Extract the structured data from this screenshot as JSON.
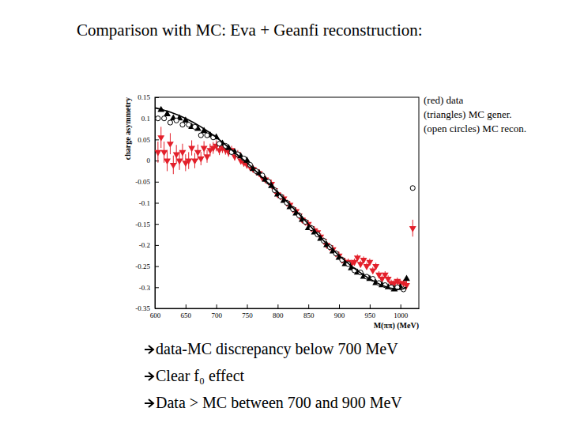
{
  "chart_data": {
    "type": "scatter",
    "title": "Comparison with MC: Eva + Geanfi reconstruction:",
    "x_label": "M(ππ) (MeV)",
    "y_label": "charge asymmetry",
    "xlim": [
      600,
      1030
    ],
    "ylim": [
      -0.35,
      0.15
    ],
    "xticks": [
      600,
      650,
      700,
      750,
      800,
      850,
      900,
      950,
      1000
    ],
    "yticks": [
      0.15,
      0.1,
      0.05,
      0,
      -0.05,
      -0.1,
      -0.15,
      -0.2,
      -0.25,
      -0.3,
      -0.35
    ],
    "notes": [
      "data-MC discrepancy below 700 MeV",
      "Clear f₀ effect",
      "Data > MC between 700 and 900 MeV"
    ],
    "series": [
      {
        "name": "(red) data",
        "color": "#e3202b",
        "marker": "triangle-down",
        "x": [
          605,
          610,
          615,
          620,
          625,
          630,
          635,
          640,
          645,
          650,
          655,
          660,
          665,
          670,
          675,
          680,
          685,
          690,
          695,
          700,
          705,
          710,
          715,
          720,
          725,
          730,
          735,
          740,
          745,
          750,
          755,
          760,
          765,
          770,
          775,
          780,
          785,
          790,
          795,
          800,
          805,
          810,
          815,
          820,
          825,
          830,
          835,
          840,
          845,
          850,
          855,
          860,
          865,
          870,
          875,
          880,
          885,
          890,
          895,
          900,
          905,
          910,
          915,
          920,
          925,
          930,
          935,
          940,
          945,
          950,
          955,
          960,
          965,
          970,
          975,
          980,
          985,
          990,
          995,
          1000,
          1005,
          1010,
          1020
        ],
        "values": [
          0.02,
          0.055,
          0.02,
          0.0,
          0.04,
          -0.01,
          0.015,
          0.0,
          0.02,
          -0.005,
          0.0,
          0.03,
          0.0,
          0.02,
          0.005,
          0.03,
          0.01,
          0.025,
          0.03,
          0.035,
          0.025,
          0.03,
          0.025,
          0.02,
          0.025,
          0.01,
          0.015,
          0.0,
          -0.005,
          -0.01,
          -0.015,
          -0.02,
          -0.025,
          -0.03,
          -0.04,
          -0.045,
          -0.05,
          -0.055,
          -0.07,
          -0.08,
          -0.085,
          -0.09,
          -0.1,
          -0.105,
          -0.115,
          -0.12,
          -0.13,
          -0.14,
          -0.145,
          -0.15,
          -0.16,
          -0.165,
          -0.17,
          -0.18,
          -0.19,
          -0.2,
          -0.205,
          -0.21,
          -0.22,
          -0.225,
          -0.235,
          -0.24,
          -0.24,
          -0.245,
          -0.24,
          -0.23,
          -0.245,
          -0.235,
          -0.25,
          -0.24,
          -0.26,
          -0.25,
          -0.27,
          -0.28,
          -0.27,
          -0.28,
          -0.29,
          -0.29,
          -0.285,
          -0.29,
          -0.29,
          -0.295,
          -0.16
        ],
        "errors": [
          0.025,
          0.025,
          0.025,
          0.025,
          0.025,
          0.022,
          0.022,
          0.022,
          0.02,
          0.02,
          0.02,
          0.018,
          0.018,
          0.018,
          0.016,
          0.016,
          0.015,
          0.015,
          0.014,
          0.013,
          0.012,
          0.012,
          0.011,
          0.011,
          0.01,
          0.01,
          0.01,
          0.009,
          0.009,
          0.009,
          0.008,
          0.008,
          0.008,
          0.008,
          0.008,
          0.008,
          0.008,
          0.008,
          0.008,
          0.008,
          0.008,
          0.008,
          0.008,
          0.008,
          0.008,
          0.008,
          0.008,
          0.008,
          0.008,
          0.008,
          0.008,
          0.008,
          0.008,
          0.008,
          0.008,
          0.008,
          0.008,
          0.008,
          0.008,
          0.008,
          0.008,
          0.008,
          0.008,
          0.008,
          0.008,
          0.008,
          0.008,
          0.008,
          0.008,
          0.008,
          0.008,
          0.008,
          0.008,
          0.008,
          0.008,
          0.008,
          0.008,
          0.008,
          0.008,
          0.008,
          0.008,
          0.01,
          0.02
        ]
      },
      {
        "name": "(triangles) MC gener.",
        "color": "#000000",
        "marker": "triangle-up",
        "x": [
          610,
          620,
          630,
          640,
          650,
          660,
          670,
          680,
          690,
          700,
          710,
          720,
          730,
          740,
          750,
          760,
          770,
          780,
          790,
          800,
          810,
          820,
          830,
          840,
          850,
          860,
          870,
          880,
          890,
          900,
          910,
          920,
          930,
          940,
          950,
          960,
          970,
          980,
          990,
          1000,
          1010
        ],
        "values": [
          0.12,
          0.11,
          0.1,
          0.1,
          0.095,
          0.08,
          0.075,
          0.07,
          0.06,
          0.055,
          0.04,
          0.03,
          0.02,
          0.01,
          0.0,
          -0.02,
          -0.03,
          -0.045,
          -0.06,
          -0.08,
          -0.095,
          -0.11,
          -0.125,
          -0.14,
          -0.16,
          -0.17,
          -0.185,
          -0.2,
          -0.215,
          -0.23,
          -0.245,
          -0.255,
          -0.265,
          -0.275,
          -0.28,
          -0.29,
          -0.295,
          -0.3,
          -0.305,
          -0.3,
          -0.28
        ]
      },
      {
        "name": "(open circles) MC recon.",
        "color": "#000000",
        "marker": "circle-open",
        "x": [
          605,
          615,
          625,
          635,
          645,
          655,
          665,
          675,
          685,
          695,
          705,
          715,
          725,
          735,
          745,
          755,
          765,
          775,
          785,
          795,
          805,
          815,
          825,
          835,
          845,
          855,
          865,
          875,
          885,
          895,
          905,
          915,
          925,
          935,
          945,
          955,
          965,
          975,
          985,
          995,
          1005,
          1020
        ],
        "values": [
          0.1,
          0.1,
          0.09,
          0.095,
          0.085,
          0.085,
          0.08,
          0.06,
          0.06,
          0.055,
          0.04,
          0.035,
          0.02,
          0.015,
          0.005,
          -0.01,
          -0.025,
          -0.035,
          -0.05,
          -0.07,
          -0.085,
          -0.1,
          -0.115,
          -0.13,
          -0.145,
          -0.16,
          -0.175,
          -0.19,
          -0.205,
          -0.22,
          -0.235,
          -0.245,
          -0.26,
          -0.265,
          -0.275,
          -0.28,
          -0.29,
          -0.295,
          -0.3,
          -0.3,
          -0.305,
          -0.065
        ]
      },
      {
        "type": "line",
        "color": "#000000",
        "line_style": "solid",
        "x": [
          600,
          625,
          650,
          675,
          700,
          725,
          750,
          775,
          800,
          825,
          850,
          875,
          900,
          925,
          950,
          975,
          1000,
          1010
        ],
        "values": [
          0.125,
          0.115,
          0.1,
          0.08,
          0.055,
          0.025,
          -0.005,
          -0.04,
          -0.075,
          -0.112,
          -0.15,
          -0.19,
          -0.225,
          -0.255,
          -0.28,
          -0.298,
          -0.305,
          -0.3
        ]
      }
    ]
  }
}
